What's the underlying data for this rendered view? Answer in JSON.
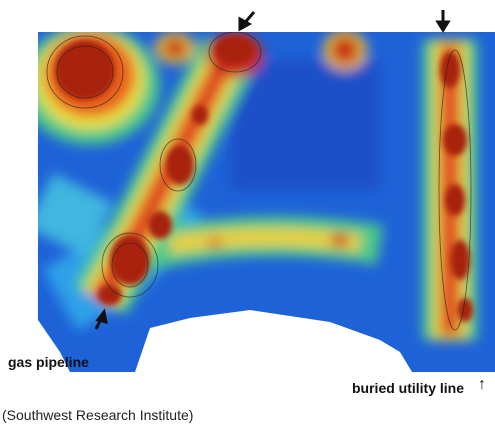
{
  "labels": {
    "pipeline": "gas pipeline",
    "utility": "buried utility line",
    "arrow_up": "↑"
  },
  "caption": "(Southwest Research Institute)"
}
